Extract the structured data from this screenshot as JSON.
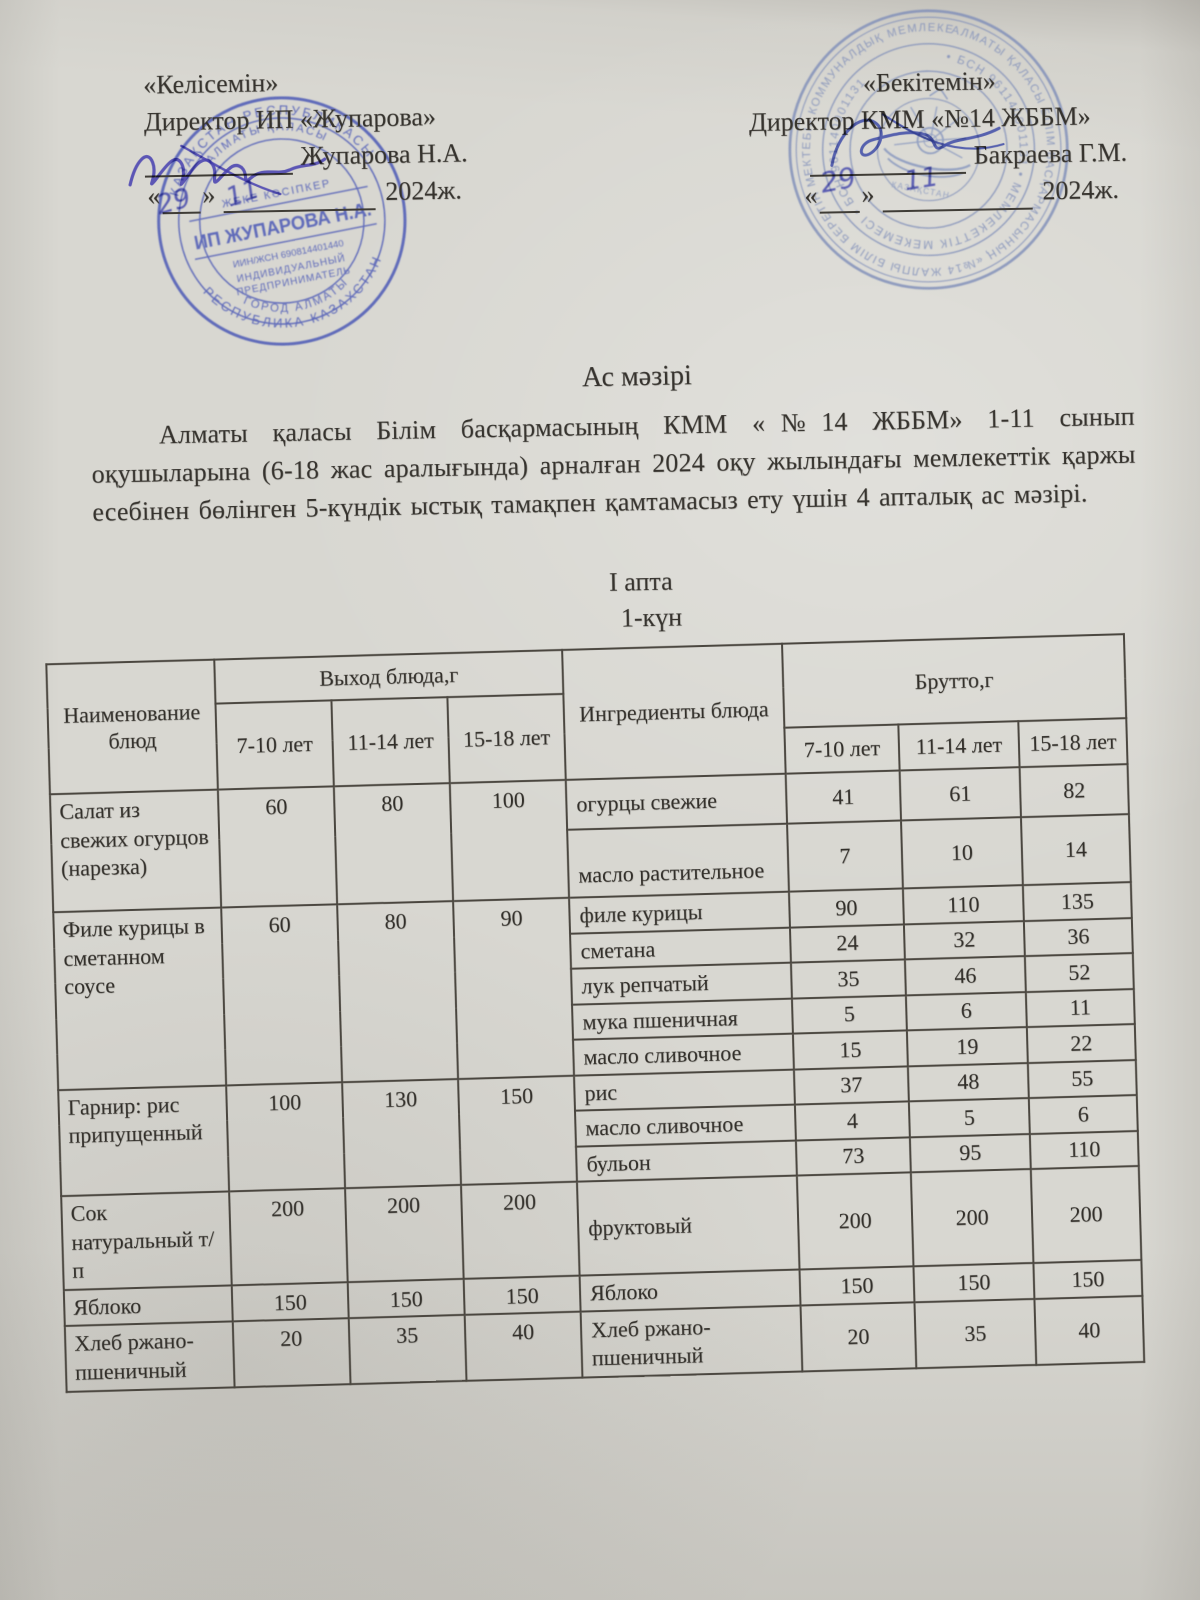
{
  "approval_left": {
    "agree_label": "«Келісемін»",
    "role_line": "Директор ИП «Жупарова»",
    "signer_name": "Жупарова Н.А.",
    "quote_open": "«",
    "quote_close": "»",
    "handwritten_day": "29",
    "handwritten_month": "11",
    "year_label": "2024ж."
  },
  "approval_right": {
    "approve_label": "«Бекітемін»",
    "role_line": "Директор КММ «№14 ЖББМ»",
    "signer_name": "Бакраева Г.М.",
    "quote_open": "«",
    "quote_close": "»",
    "handwritten_day": "29",
    "handwritten_month": "11",
    "year_label": "2024ж."
  },
  "title": "Ас мәзірі",
  "intro_paragraph": "Алматы қаласы Білім басқармасының КММ «№14 ЖББМ» 1-11 сынып оқушыларына (6-18 жас аралығында) арналған 2024 оқу жылындағы мемлекеттік қаржы есебінен бөлінген 5-күндік ыстық тамақпен қамтамасыз ету үшін 4 апталық ас мәзірі.",
  "week_label": "I апта",
  "day_label": "1-күн",
  "stamp_left": {
    "color": "#4452b4",
    "ring_top": "ҚАЗАҚСТАН РЕСПУБЛИКАСЫ",
    "ring_bottom": "РЕСПУБЛИКА КАЗАХСТАН",
    "inner_ring_top": "АЛМАТЫ ҚАЛАСЫ",
    "inner_ring_bottom": "ГОРОД АЛМАТЫ",
    "center_small": "ЖЕКЕ КӘСІПКЕР",
    "center_name": "ИП ЖУПАРОВА Н.А.",
    "center_iin": "ИИН/ЖСН 690814401440",
    "center_line4": "ИНДИВИДУАЛЬНЫЙ",
    "center_line5": "ПРЕДПРИНИМАТЕЛЬ"
  },
  "stamp_right": {
    "color": "#7e8db8",
    "ring_outer": "АЛМАТЫ ҚАЛАСЫ БІЛІМ БАСҚАРМАСЫНЫҢ «№14 ЖАЛПЫ БІЛІМ БЕРЕТІН МЕКТЕБІ» КОММУНАЛДЫҚ МЕМЛЕКЕТТІК МЕКЕМЕСІ •",
    "ring_middle": "• БСН 961140001131 • МЕМЛЕКЕТТІК МЕКЕМЕСІ • БСН 961140001131",
    "emblem_label": "ҚАЗАҚСТАН"
  },
  "table": {
    "col_dish": "Наименование блюд",
    "col_output": "Выход блюда,г",
    "col_ingredients": "Ингредиенты блюда",
    "col_brutto": "Брутто,г",
    "age_groups": [
      "7-10 лет",
      "11-14 лет",
      "15-18 лет"
    ],
    "groups": [
      {
        "dish": "Салат из свежих огурцов (нарезка)",
        "out": [
          "60",
          "80",
          "100"
        ],
        "ingredients": [
          {
            "name": "огурцы свежие",
            "brutto": [
              "41",
              "61",
              "82"
            ]
          },
          {
            "name": "масло растительное",
            "brutto": [
              "7",
              "10",
              "14"
            ]
          }
        ]
      },
      {
        "dish": "Филе курицы в сметанном соусе",
        "out": [
          "60",
          "80",
          "90"
        ],
        "ingredients": [
          {
            "name": "филе курицы",
            "brutto": [
              "90",
              "110",
              "135"
            ]
          },
          {
            "name": "сметана",
            "brutto": [
              "24",
              "32",
              "36"
            ]
          },
          {
            "name": "лук репчатый",
            "brutto": [
              "35",
              "46",
              "52"
            ]
          },
          {
            "name": "мука пшеничная",
            "brutto": [
              "5",
              "6",
              "11"
            ]
          },
          {
            "name": "масло сливочное",
            "brutto": [
              "15",
              "19",
              "22"
            ]
          }
        ]
      },
      {
        "dish": "Гарнир: рис припущенный",
        "out": [
          "100",
          "130",
          "150"
        ],
        "ingredients": [
          {
            "name": "рис",
            "brutto": [
              "37",
              "48",
              "55"
            ]
          },
          {
            "name": "масло сливочное",
            "brutto": [
              "4",
              "5",
              "6"
            ]
          },
          {
            "name": "бульон",
            "brutto": [
              "73",
              "95",
              "110"
            ]
          }
        ]
      },
      {
        "dish": "Сок натуральный т/п",
        "out": [
          "200",
          "200",
          "200"
        ],
        "ingredients": [
          {
            "name": "фруктовый",
            "brutto": [
              "200",
              "200",
              "200"
            ]
          }
        ]
      },
      {
        "dish": "Яблоко",
        "out": [
          "150",
          "150",
          "150"
        ],
        "ingredients": [
          {
            "name": "Яблоко",
            "brutto": [
              "150",
              "150",
              "150"
            ]
          }
        ]
      },
      {
        "dish": "Хлеб ржано-пшеничный",
        "out": [
          "20",
          "35",
          "40"
        ],
        "ingredients": [
          {
            "name": "Хлеб ржано-пшеничный",
            "brutto": [
              "20",
              "35",
              "40"
            ]
          }
        ]
      }
    ]
  }
}
